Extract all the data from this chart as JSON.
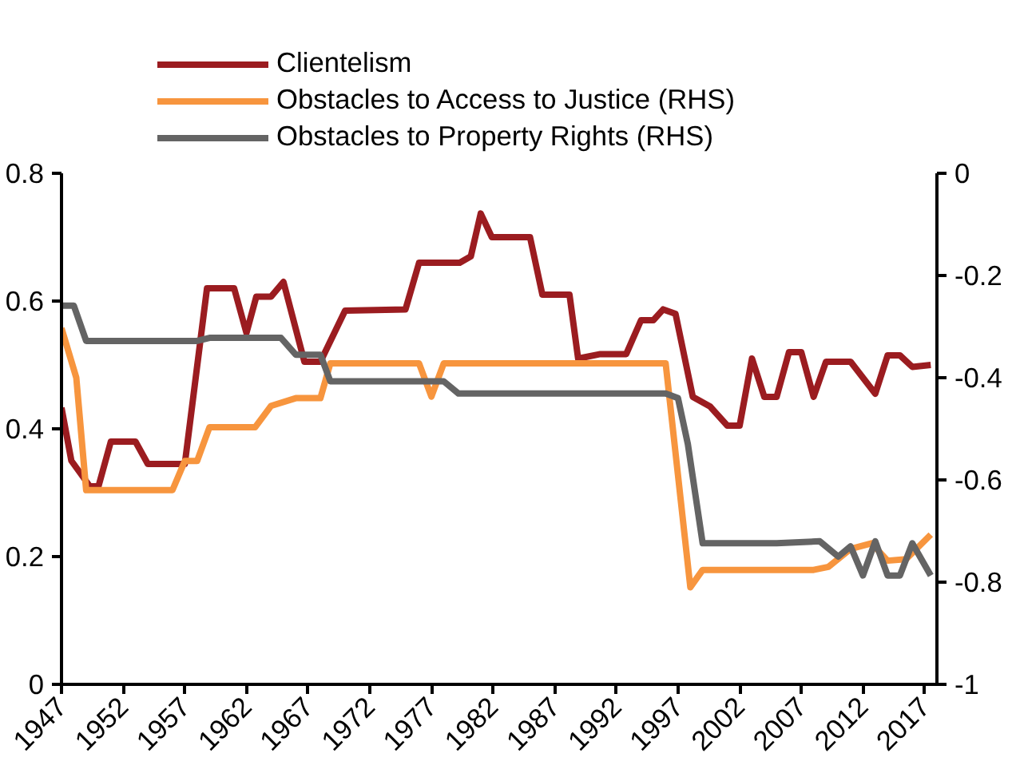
{
  "chart_data": {
    "type": "line",
    "xlim": [
      1947,
      2018
    ],
    "xticks": [
      1947,
      1952,
      1957,
      1962,
      1967,
      1972,
      1977,
      1982,
      1987,
      1992,
      1997,
      2002,
      2007,
      2012,
      2017
    ],
    "ylim": [
      0,
      0.8
    ],
    "yticks": [
      0,
      0.2,
      0.4,
      0.6,
      0.8
    ],
    "y2lim": [
      -1,
      0
    ],
    "y2ticks": [
      -1,
      -0.8,
      -0.6,
      -0.4,
      -0.2,
      0
    ],
    "grid": false,
    "legend": "top",
    "marker": "none",
    "line_style": "solid",
    "series": [
      {
        "name": "Clientelism",
        "color": "#9b1c20",
        "x": [
          1947,
          1947.8,
          1949.3,
          1950,
          1951,
          1953,
          1954,
          1957,
          1958.8,
          1961,
          1962,
          1962.8,
          1964,
          1965,
          1966.7,
          1968,
          1970,
          1974.9,
          1976,
          1979.3,
          1980.2,
          1981,
          1981.9,
          1985,
          1986,
          1988.2,
          1988.9,
          1990.7,
          1992.8,
          1994,
          1995,
          1995.8,
          1996.8,
          1998.2,
          1999.6,
          2001,
          2002,
          2003,
          2004,
          2005,
          2006,
          2007,
          2008,
          2009,
          2011,
          2013,
          2014,
          2015,
          2016,
          2017.5
        ],
        "values": [
          0.433,
          0.35,
          0.31,
          0.31,
          0.38,
          0.38,
          0.345,
          0.345,
          0.62,
          0.62,
          0.55,
          0.607,
          0.607,
          0.63,
          0.505,
          0.505,
          0.585,
          0.587,
          0.66,
          0.66,
          0.67,
          0.737,
          0.7,
          0.7,
          0.61,
          0.61,
          0.51,
          0.517,
          0.517,
          0.57,
          0.57,
          0.587,
          0.58,
          0.45,
          0.435,
          0.405,
          0.405,
          0.51,
          0.45,
          0.45,
          0.52,
          0.52,
          0.45,
          0.505,
          0.505,
          0.455,
          0.515,
          0.515,
          0.497,
          0.5
        ]
      },
      {
        "name": "Obstacles to Access to Justice (RHS)",
        "color": "#f7953e",
        "axis": "y2",
        "x": [
          1947,
          1948.2,
          1949,
          1956,
          1957,
          1958,
          1959,
          1962.7,
          1964,
          1966,
          1968,
          1968.8,
          1976,
          1977,
          1978,
          1996,
          1998,
          1999,
          2008,
          2009.2,
          2011,
          2012.7,
          2014,
          2015.5,
          2017.5
        ],
        "values": [
          -0.303,
          -0.4,
          -0.62,
          -0.62,
          -0.563,
          -0.563,
          -0.497,
          -0.497,
          -0.455,
          -0.44,
          -0.44,
          -0.372,
          -0.372,
          -0.437,
          -0.372,
          -0.372,
          -0.81,
          -0.776,
          -0.776,
          -0.77,
          -0.735,
          -0.724,
          -0.758,
          -0.755,
          -0.707
        ]
      },
      {
        "name": "Obstacles to Property Rights (RHS)",
        "color": "#646464",
        "axis": "y2",
        "x": [
          1947,
          1948,
          1949,
          1958,
          1959,
          1964.8,
          1966,
          1968,
          1968.8,
          1978,
          1979.2,
          1996,
          1997,
          1997.8,
          1999,
          2005,
          2008.5,
          2010,
          2011,
          2012,
          2013,
          2014,
          2015,
          2016,
          2017.5
        ],
        "values": [
          -0.259,
          -0.259,
          -0.328,
          -0.328,
          -0.322,
          -0.322,
          -0.355,
          -0.355,
          -0.407,
          -0.407,
          -0.431,
          -0.431,
          -0.44,
          -0.53,
          -0.724,
          -0.724,
          -0.72,
          -0.75,
          -0.73,
          -0.787,
          -0.72,
          -0.787,
          -0.787,
          -0.724,
          -0.787
        ]
      }
    ]
  }
}
